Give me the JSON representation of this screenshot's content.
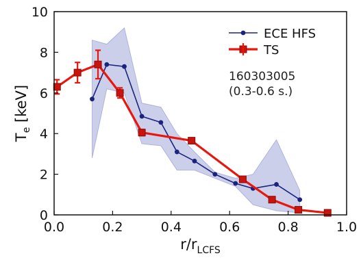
{
  "chart_data": {
    "type": "line",
    "xlabel": "r/r",
    "xlabel_sub": "LCFS",
    "ylabel": "T",
    "ylabel_sub": "e",
    "ylabel_suffix": " [keV]",
    "xlim": [
      0.0,
      1.0
    ],
    "ylim": [
      0,
      10
    ],
    "xticks": [
      "0.0",
      "0.2",
      "0.4",
      "0.6",
      "0.8",
      "1.0"
    ],
    "yticks": [
      "0",
      "2",
      "4",
      "6",
      "8",
      "10"
    ],
    "xtick_values": [
      0.0,
      0.2,
      0.4,
      0.6,
      0.8,
      1.0
    ],
    "ytick_values": [
      0,
      2,
      4,
      6,
      8,
      10
    ],
    "legend_position": "top-right",
    "annotations": [
      "160303005",
      "(0.3-0.6 s.)"
    ],
    "series": [
      {
        "name": "ECE HFS",
        "color": "#1a237e",
        "marker": "circle",
        "x": [
          0.13,
          0.18,
          0.24,
          0.3,
          0.365,
          0.42,
          0.48,
          0.55,
          0.62,
          0.68,
          0.76,
          0.84
        ],
        "y": [
          5.7,
          7.4,
          7.3,
          4.85,
          4.55,
          3.1,
          2.65,
          2.0,
          1.55,
          1.3,
          1.5,
          0.75
        ],
        "band_lower": [
          2.8,
          6.2,
          6.0,
          3.5,
          3.4,
          2.2,
          2.2,
          1.8,
          1.4,
          0.5,
          0.2,
          0.1
        ],
        "band_upper": [
          8.6,
          8.4,
          9.2,
          5.5,
          5.3,
          4.0,
          3.1,
          2.1,
          1.8,
          2.0,
          3.7,
          1.2
        ],
        "band_color": "#7f86c7"
      },
      {
        "name": "TS",
        "color": "#e8160c",
        "marker": "square",
        "x": [
          0.01,
          0.08,
          0.15,
          0.225,
          0.3,
          0.47,
          0.645,
          0.745,
          0.835,
          0.935
        ],
        "y": [
          6.3,
          7.0,
          7.4,
          6.0,
          4.05,
          3.65,
          1.75,
          0.75,
          0.25,
          0.1
        ],
        "err": [
          0.35,
          0.5,
          0.7,
          0.25,
          0.15,
          0.1,
          0.1,
          0.05,
          0.05,
          0.05
        ]
      }
    ]
  }
}
